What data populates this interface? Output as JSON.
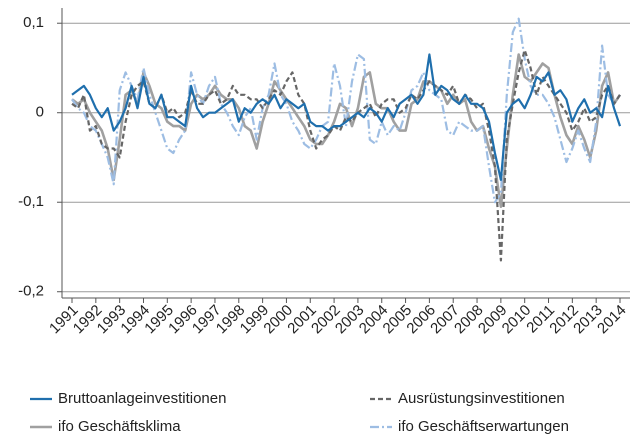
{
  "chart_data": {
    "type": "line",
    "x": [
      1991,
      1991.25,
      1991.5,
      1991.75,
      1992,
      1992.25,
      1992.5,
      1992.75,
      1993,
      1993.25,
      1993.5,
      1993.75,
      1994,
      1994.25,
      1994.5,
      1994.75,
      1995,
      1995.25,
      1995.5,
      1995.75,
      1996,
      1996.25,
      1996.5,
      1996.75,
      1997,
      1997.25,
      1997.5,
      1997.75,
      1998,
      1998.25,
      1998.5,
      1998.75,
      1999,
      1999.25,
      1999.5,
      1999.75,
      2000,
      2000.25,
      2000.5,
      2000.75,
      2001,
      2001.25,
      2001.5,
      2001.75,
      2002,
      2002.25,
      2002.5,
      2002.75,
      2003,
      2003.25,
      2003.5,
      2003.75,
      2004,
      2004.25,
      2004.5,
      2004.75,
      2005,
      2005.25,
      2005.5,
      2005.75,
      2006,
      2006.25,
      2006.5,
      2006.75,
      2007,
      2007.25,
      2007.5,
      2007.75,
      2008,
      2008.25,
      2008.5,
      2008.75,
      2009,
      2009.25,
      2009.5,
      2009.75,
      2010,
      2010.25,
      2010.5,
      2010.75,
      2011,
      2011.25,
      2011.5,
      2011.75,
      2012,
      2012.25,
      2012.5,
      2012.75,
      2013,
      2013.25,
      2013.5,
      2013.75,
      2014
    ],
    "series": [
      {
        "name": "Bruttoanlageinvestitionen",
        "color": "#1f6fad",
        "dash": "solid",
        "width": 2.2,
        "values": [
          0.02,
          0.025,
          0.03,
          0.02,
          0.005,
          -0.005,
          0.005,
          -0.02,
          -0.01,
          0.005,
          0.03,
          0.005,
          0.04,
          0.01,
          0.005,
          0.02,
          -0.005,
          -0.005,
          -0.01,
          -0.015,
          0.03,
          0.005,
          -0.005,
          0,
          0,
          0.005,
          0.01,
          0.015,
          -0.01,
          0.005,
          0,
          0.01,
          0.015,
          0.01,
          0.02,
          0.005,
          0.015,
          0.01,
          0.005,
          0.01,
          -0.01,
          -0.015,
          -0.015,
          -0.02,
          -0.015,
          -0.015,
          -0.01,
          -0.005,
          0,
          -0.005,
          0.005,
          0,
          -0.01,
          0.005,
          -0.005,
          0.01,
          0.015,
          0.02,
          0.01,
          0.02,
          0.065,
          0.02,
          0.03,
          0.025,
          0.015,
          0.01,
          0.02,
          0.01,
          0.01,
          0.005,
          -0.01,
          -0.045,
          -0.075,
          0,
          0.01,
          0.015,
          0.005,
          0.02,
          0.04,
          0.035,
          0.045,
          0.02,
          0.025,
          0.015,
          -0.01,
          0.005,
          0.015,
          0,
          0.005,
          -0.005,
          0.03,
          0.005,
          -0.015
        ]
      },
      {
        "name": "Ausrüstungsinvestitionen",
        "color": "#666666",
        "dash": "dashed",
        "width": 2.2,
        "values": [
          0.01,
          0.005,
          0.02,
          -0.02,
          -0.015,
          -0.035,
          -0.04,
          -0.04,
          -0.05,
          -0.01,
          0.02,
          0.03,
          0.035,
          0.01,
          0.005,
          0.02,
          0,
          0.005,
          -0.005,
          0,
          0.025,
          0.01,
          0.01,
          0.02,
          0.025,
          0.01,
          0.015,
          0.03,
          0.02,
          0.02,
          0.015,
          0.015,
          0.005,
          0.015,
          0.025,
          0.02,
          0.035,
          0.045,
          0.02,
          0.01,
          -0.02,
          -0.04,
          -0.03,
          -0.025,
          -0.015,
          -0.02,
          -0.005,
          -0.01,
          0,
          0.005,
          0.01,
          -0.005,
          0.01,
          0.015,
          0.015,
          0,
          0.005,
          0.02,
          0.015,
          0.025,
          0.035,
          0.03,
          0.025,
          0.02,
          0.03,
          0.01,
          0.02,
          0.015,
          0.005,
          0.01,
          -0.02,
          -0.06,
          -0.165,
          -0.03,
          0.01,
          0.045,
          0.07,
          0.05,
          0.02,
          0.04,
          0.03,
          0.02,
          0.01,
          0,
          -0.02,
          -0.01,
          0.005,
          -0.01,
          -0.005,
          0.02,
          0.03,
          0.01,
          0.02
        ]
      },
      {
        "name": "ifo Geschäftsklima",
        "color": "#a0a0a0",
        "dash": "solid",
        "width": 2.6,
        "values": [
          0.015,
          0.01,
          0.015,
          0,
          -0.01,
          -0.02,
          -0.04,
          -0.075,
          -0.03,
          0.02,
          0.025,
          0.01,
          0.045,
          0.03,
          0.01,
          0.005,
          -0.01,
          -0.015,
          -0.015,
          -0.02,
          0.01,
          0.02,
          0.015,
          0.02,
          0.03,
          0.02,
          0.015,
          0.015,
          0.005,
          -0.015,
          -0.02,
          -0.04,
          -0.01,
          0.01,
          0.035,
          0.025,
          0.015,
          0.005,
          -0.005,
          -0.015,
          -0.03,
          -0.035,
          -0.035,
          -0.025,
          -0.01,
          0.01,
          0.005,
          -0.015,
          0.005,
          0.04,
          0.045,
          0.01,
          0.005,
          0.005,
          -0.01,
          -0.02,
          -0.02,
          0.01,
          0.015,
          0.035,
          0.035,
          0.03,
          0.025,
          0.01,
          0.02,
          0.01,
          0.015,
          -0.01,
          -0.02,
          -0.015,
          -0.04,
          -0.06,
          -0.105,
          -0.04,
          0.02,
          0.065,
          0.04,
          0.035,
          0.045,
          0.055,
          0.05,
          0.02,
          -0.005,
          -0.025,
          -0.035,
          -0.015,
          -0.03,
          -0.05,
          -0.02,
          0.03,
          0.045,
          0.01,
          0.02
        ]
      },
      {
        "name": "ifo Geschäftserwartungen",
        "color": "#9dbde3",
        "dash": "dashdot",
        "width": 2.2,
        "values": [
          0.015,
          0.005,
          0,
          -0.015,
          -0.02,
          -0.035,
          -0.05,
          -0.08,
          0.025,
          0.045,
          0.03,
          0.015,
          0.05,
          0.02,
          0,
          -0.02,
          -0.04,
          -0.045,
          -0.03,
          -0.02,
          0.045,
          0.02,
          0.01,
          0.03,
          0.04,
          0.01,
          0,
          -0.015,
          -0.025,
          -0.005,
          0.005,
          -0.03,
          0.005,
          0.02,
          0.055,
          0.02,
          0.01,
          -0.01,
          -0.02,
          -0.035,
          -0.04,
          -0.03,
          -0.015,
          -0.01,
          0.055,
          0.03,
          -0.015,
          0.035,
          0.065,
          0.06,
          -0.03,
          -0.035,
          -0.01,
          -0.025,
          -0.015,
          -0.02,
          0,
          0.025,
          0.03,
          0.045,
          0.025,
          0.02,
          0.015,
          -0.02,
          -0.025,
          -0.01,
          -0.015,
          -0.02,
          -0.02,
          -0.015,
          -0.06,
          -0.1,
          -0.09,
          0.02,
          0.09,
          0.105,
          0.06,
          0.03,
          0.02,
          0.02,
          0.01,
          -0.005,
          -0.03,
          -0.055,
          -0.04,
          -0.02,
          -0.04,
          -0.055,
          -0.01,
          0.075,
          0.02,
          0.01,
          0.02
        ]
      }
    ],
    "xlim": [
      1990.58,
      2014.42
    ],
    "xticks": [
      1991,
      1992,
      1993,
      1994,
      1995,
      1996,
      1997,
      1998,
      1999,
      2000,
      2001,
      2002,
      2003,
      2004,
      2005,
      2006,
      2007,
      2008,
      2009,
      2010,
      2011,
      2012,
      2013,
      2014
    ],
    "ylim": [
      -0.207,
      0.117
    ],
    "yticks": [
      {
        "value": 0.1,
        "label": "0,1"
      },
      0,
      {
        "value": -0.1,
        "label": "-0,1"
      },
      {
        "value": -0.2,
        "label": "-0,2"
      }
    ],
    "grid": true
  }
}
